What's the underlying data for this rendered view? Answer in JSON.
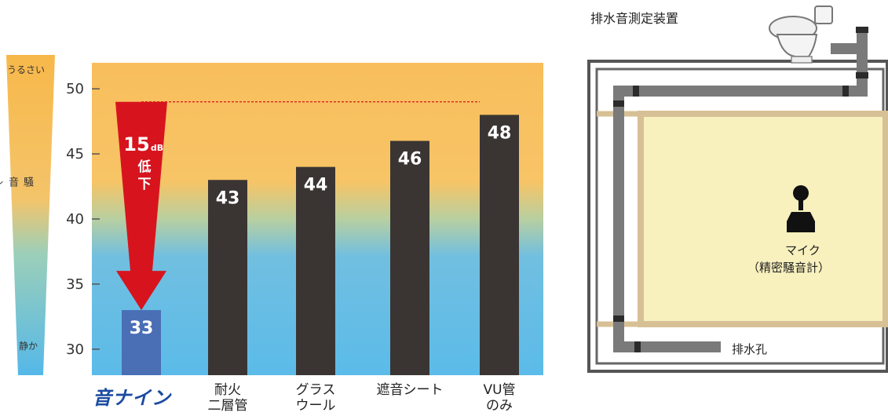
{
  "loudness_scale": {
    "top_label": "うるさい",
    "middle_label": "騒音レベル",
    "bottom_label": "静か"
  },
  "chart_data": {
    "type": "bar",
    "title": "",
    "xlabel": "",
    "ylabel": "",
    "ylim": [
      28,
      52
    ],
    "yticks": [
      30,
      35,
      40,
      45,
      50
    ],
    "categories": [
      "音ナイン",
      "耐火\n二層管",
      "グラス\nウール",
      "遮音シート",
      "VU管\nのみ"
    ],
    "values": [
      33,
      43,
      44,
      46,
      48
    ],
    "data_labels": [
      "33",
      "43",
      "44",
      "46",
      "48"
    ],
    "bar_colors": [
      "#4a6fb5",
      "#3a3533",
      "#3a3533",
      "#3a3533",
      "#3a3533"
    ],
    "reference_line": 49,
    "annotation": {
      "value": "15",
      "unit": "dB",
      "text": "低\n下",
      "color": "#d7141e"
    },
    "background_colors": {
      "upper": "#f8be5c",
      "lower": "#67bde8"
    }
  },
  "diagram": {
    "title": "排水音測定装置",
    "mic_label_line1": "マイク",
    "mic_label_line2": "（精密騒音計）",
    "drain_label": "排水孔"
  }
}
